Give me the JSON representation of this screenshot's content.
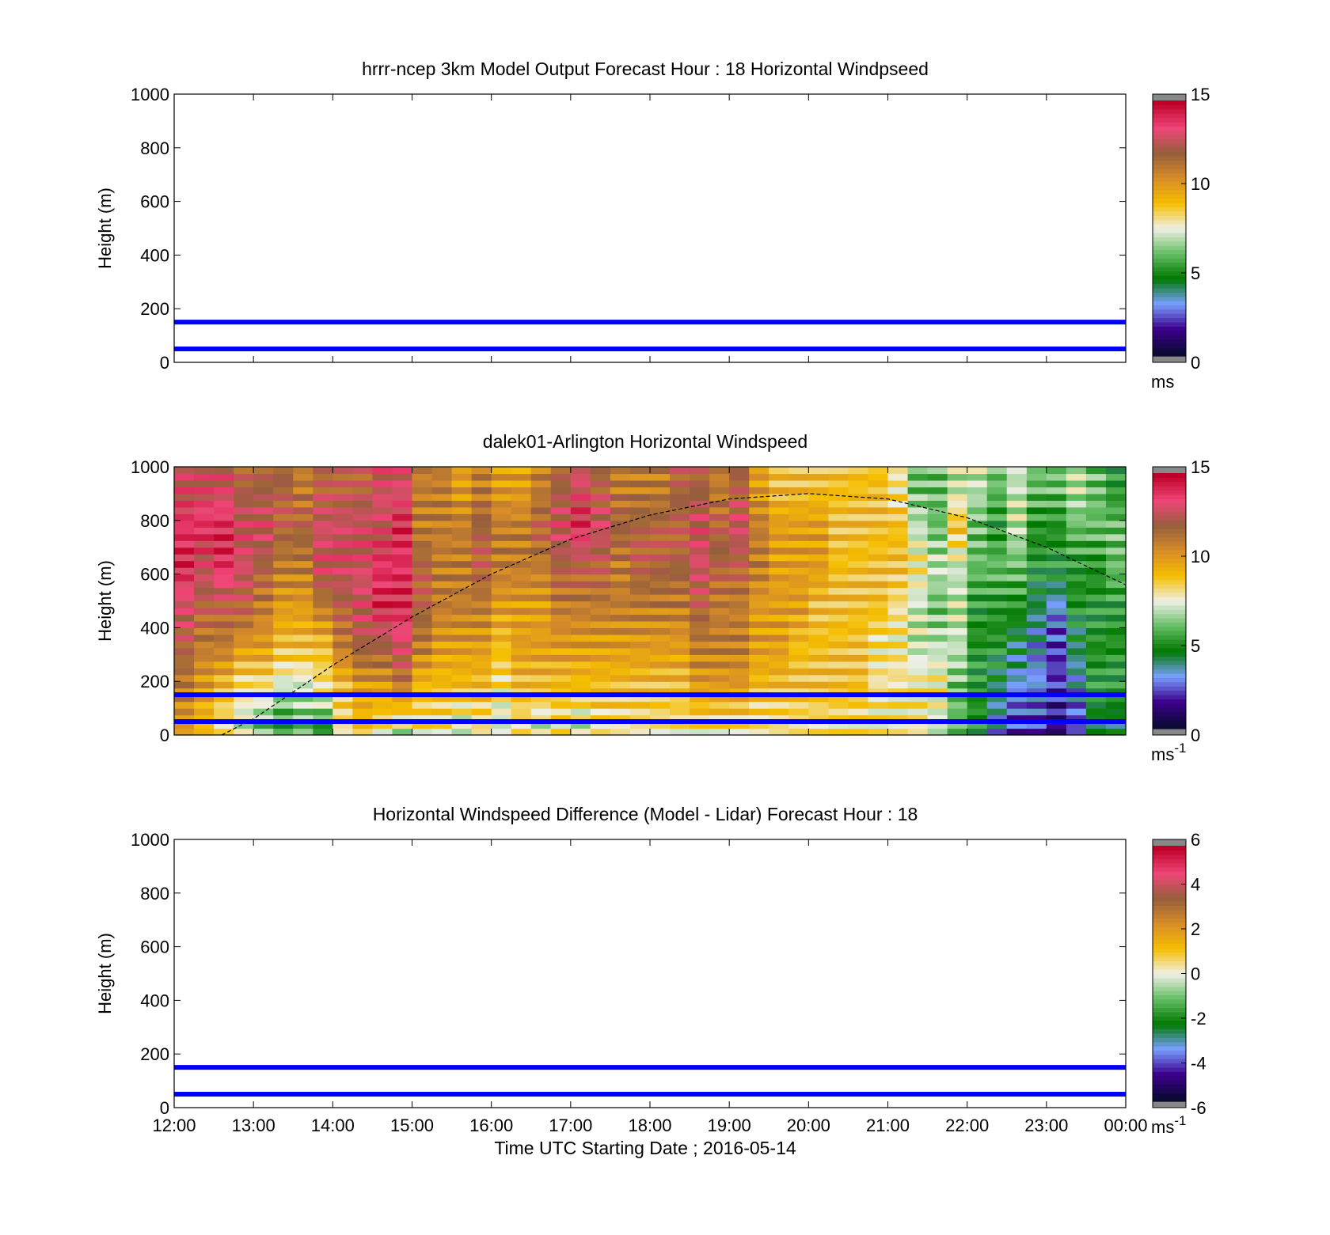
{
  "chart_data": [
    {
      "type": "heatmap",
      "title": "hrrr-ncep 3km Model Output   Forecast Hour : 18 Horizontal Windpseed",
      "ylabel": "Height (m)",
      "xlabel": "",
      "ylim": [
        0,
        1000
      ],
      "yticks": [
        "0",
        "200",
        "400",
        "600",
        "800",
        "1000"
      ],
      "xtick_labels_shown": false,
      "colorbar": {
        "ticks": [
          "0",
          "5",
          "10",
          "15"
        ],
        "range": [
          0,
          15
        ],
        "unit_base": "ms",
        "unit_sup": ""
      },
      "empty": true,
      "reference_lines_m": [
        50,
        150
      ],
      "reference_line_color": "#0000ff"
    },
    {
      "type": "heatmap",
      "title": "dalek01-Arlington  Horizontal Windspeed",
      "ylabel": "Height (m)",
      "xlabel": "",
      "ylim": [
        0,
        1000
      ],
      "yticks": [
        "0",
        "200",
        "400",
        "600",
        "800",
        "1000"
      ],
      "xtick_labels_shown": false,
      "colorbar": {
        "ticks": [
          "0",
          "5",
          "10",
          "15"
        ],
        "range": [
          0,
          15
        ],
        "unit_base": "ms",
        "unit_sup": "-1"
      },
      "empty": false,
      "reference_lines_m": [
        50,
        150
      ],
      "reference_line_color": "#0000ff",
      "time_hours_utc": [
        12,
        24
      ],
      "column_width_minutes": 15,
      "profile_heights_m": [
        25,
        175,
        325,
        475,
        625,
        775,
        925
      ],
      "windspeed_columns_ms": [
        [
          10,
          11,
          12,
          13,
          14,
          14,
          13
        ],
        [
          9,
          10,
          11,
          12,
          13,
          14,
          13
        ],
        [
          8,
          9,
          11,
          12,
          14,
          14,
          13
        ],
        [
          7,
          8,
          10,
          12,
          13,
          13,
          12
        ],
        [
          6,
          8,
          10,
          11,
          12,
          13,
          12
        ],
        [
          5,
          7,
          9,
          10,
          11,
          12,
          12
        ],
        [
          6,
          7,
          9,
          10,
          11,
          12,
          11
        ],
        [
          5,
          8,
          9,
          11,
          13,
          13,
          12
        ],
        [
          8,
          9,
          11,
          12,
          13,
          13,
          12
        ],
        [
          9,
          10,
          12,
          13,
          13,
          13,
          12
        ],
        [
          8,
          10,
          12,
          14,
          14,
          13,
          13
        ],
        [
          7,
          11,
          13,
          14,
          14,
          14,
          13
        ],
        [
          8,
          9,
          11,
          12,
          12,
          11,
          11
        ],
        [
          8,
          9,
          10,
          11,
          11,
          11,
          11
        ],
        [
          7,
          9,
          10,
          11,
          11,
          11,
          10
        ],
        [
          8,
          9,
          10,
          11,
          12,
          12,
          11
        ],
        [
          7,
          8,
          9,
          10,
          11,
          11,
          10
        ],
        [
          8,
          9,
          10,
          10,
          11,
          11,
          10
        ],
        [
          7,
          9,
          10,
          10,
          11,
          12,
          11
        ],
        [
          8,
          9,
          10,
          11,
          12,
          13,
          12
        ],
        [
          7,
          9,
          10,
          11,
          12,
          14,
          13
        ],
        [
          8,
          9,
          10,
          11,
          12,
          13,
          12
        ],
        [
          8,
          9,
          10,
          11,
          11,
          12,
          11
        ],
        [
          8,
          9,
          10,
          11,
          12,
          12,
          11
        ],
        [
          8,
          9,
          10,
          11,
          12,
          12,
          11
        ],
        [
          8,
          9,
          10,
          11,
          12,
          12,
          12
        ],
        [
          8,
          10,
          11,
          12,
          13,
          13,
          12
        ],
        [
          8,
          10,
          11,
          11,
          12,
          12,
          11
        ],
        [
          8,
          10,
          11,
          11,
          12,
          13,
          12
        ],
        [
          8,
          9,
          10,
          10,
          11,
          11,
          10
        ],
        [
          8,
          9,
          10,
          10,
          10,
          10,
          9
        ],
        [
          8,
          9,
          9,
          10,
          10,
          10,
          9
        ],
        [
          8,
          9,
          9,
          9,
          10,
          10,
          9
        ],
        [
          8,
          9,
          9,
          9,
          9,
          9,
          9
        ],
        [
          8,
          9,
          9,
          9,
          9,
          9,
          9
        ],
        [
          8,
          8,
          8,
          9,
          9,
          9,
          9
        ],
        [
          8,
          8,
          8,
          8,
          9,
          9,
          8
        ],
        [
          8,
          8,
          7,
          7,
          8,
          7,
          6
        ],
        [
          7,
          8,
          7,
          6,
          7,
          6,
          6
        ],
        [
          6,
          6,
          7,
          7,
          7,
          9,
          7
        ],
        [
          5,
          5,
          5,
          5,
          6,
          6,
          7
        ],
        [
          3,
          4,
          5,
          5,
          6,
          5,
          6
        ],
        [
          2,
          3,
          4,
          5,
          6,
          7,
          7
        ],
        [
          2,
          3,
          3,
          4,
          5,
          5,
          6
        ],
        [
          1,
          2,
          2,
          3,
          5,
          5,
          6
        ],
        [
          2,
          3,
          4,
          5,
          5,
          6,
          7
        ],
        [
          4,
          5,
          5,
          5,
          5,
          6,
          6
        ],
        [
          4,
          5,
          5,
          5,
          6,
          6,
          5
        ]
      ],
      "dashed_curve_m": [
        [
          12.6,
          0
        ],
        [
          13.0,
          60
        ],
        [
          14.0,
          260
        ],
        [
          15.0,
          440
        ],
        [
          16.0,
          600
        ],
        [
          17.0,
          730
        ],
        [
          18.0,
          820
        ],
        [
          19.0,
          880
        ],
        [
          20.0,
          900
        ],
        [
          21.0,
          880
        ],
        [
          22.0,
          810
        ],
        [
          23.0,
          700
        ],
        [
          24.0,
          560
        ]
      ]
    },
    {
      "type": "heatmap",
      "title": "Horizontal Windspeed Difference (Model - Lidar) Forecast Hour : 18",
      "ylabel": "Height (m)",
      "xlabel": "Time UTC  Starting Date ; 2016-05-14",
      "ylim": [
        0,
        1000
      ],
      "yticks": [
        "0",
        "200",
        "400",
        "600",
        "800",
        "1000"
      ],
      "xtick_labels_shown": true,
      "xticks": [
        "12:00",
        "13:00",
        "14:00",
        "15:00",
        "16:00",
        "17:00",
        "18:00",
        "19:00",
        "20:00",
        "21:00",
        "22:00",
        "23:00",
        "00:00"
      ],
      "colorbar": {
        "ticks": [
          "-6",
          "-4",
          "-2",
          "0",
          "2",
          "4",
          "6"
        ],
        "range": [
          -6,
          6
        ],
        "unit_base": "ms",
        "unit_sup": "-1"
      },
      "empty": true,
      "reference_lines_m": [
        50,
        150
      ],
      "reference_line_color": "#0000ff"
    }
  ]
}
